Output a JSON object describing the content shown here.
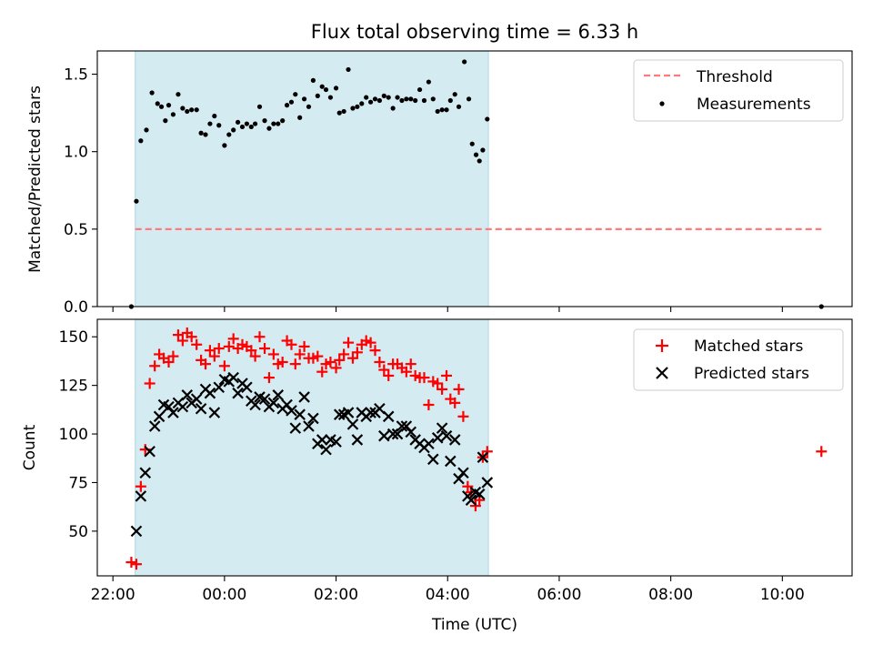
{
  "chart_data": [
    {
      "type": "scatter",
      "title": "Flux total observing time = 6.33 h",
      "xlabel": "",
      "ylabel": "Matched/Predicted stars",
      "x_unit": "hours since 22:00 UTC",
      "xlim": [
        -0.28,
        13.25
      ],
      "ylim": [
        0,
        1.65
      ],
      "yticks": [
        {
          "value": 0.0,
          "label": "0.0"
        },
        {
          "value": 0.5,
          "label": "0.5"
        },
        {
          "value": 1.0,
          "label": "1.0"
        },
        {
          "value": 1.5,
          "label": "1.5"
        }
      ],
      "observing_window": [
        0.4,
        6.73
      ],
      "threshold": {
        "name": "Threshold",
        "value": 0.5,
        "x": [
          0.4,
          12.7
        ]
      },
      "legend": {
        "position": "top-right",
        "entries": [
          "Threshold",
          "Measurements"
        ]
      },
      "series": [
        {
          "name": "Measurements",
          "points": [
            [
              0.33,
              0.0
            ],
            [
              0.42,
              0.68
            ],
            [
              0.5,
              1.07
            ],
            [
              0.6,
              1.14
            ],
            [
              0.7,
              1.38
            ],
            [
              0.8,
              1.31
            ],
            [
              0.87,
              1.29
            ],
            [
              0.94,
              1.2
            ],
            [
              1.0,
              1.3
            ],
            [
              1.08,
              1.24
            ],
            [
              1.17,
              1.37
            ],
            [
              1.25,
              1.28
            ],
            [
              1.33,
              1.26
            ],
            [
              1.41,
              1.27
            ],
            [
              1.5,
              1.27
            ],
            [
              1.58,
              1.12
            ],
            [
              1.66,
              1.11
            ],
            [
              1.74,
              1.18
            ],
            [
              1.82,
              1.23
            ],
            [
              1.9,
              1.17
            ],
            [
              2.0,
              1.04
            ],
            [
              2.08,
              1.11
            ],
            [
              2.16,
              1.14
            ],
            [
              2.24,
              1.19
            ],
            [
              2.32,
              1.16
            ],
            [
              2.4,
              1.18
            ],
            [
              2.48,
              1.16
            ],
            [
              2.55,
              1.18
            ],
            [
              2.63,
              1.29
            ],
            [
              2.72,
              1.2
            ],
            [
              2.8,
              1.15
            ],
            [
              2.88,
              1.18
            ],
            [
              2.96,
              1.18
            ],
            [
              3.04,
              1.2
            ],
            [
              3.12,
              1.3
            ],
            [
              3.2,
              1.32
            ],
            [
              3.27,
              1.37
            ],
            [
              3.35,
              1.22
            ],
            [
              3.43,
              1.34
            ],
            [
              3.51,
              1.29
            ],
            [
              3.59,
              1.46
            ],
            [
              3.67,
              1.36
            ],
            [
              3.75,
              1.42
            ],
            [
              3.82,
              1.4
            ],
            [
              3.9,
              1.35
            ],
            [
              4.0,
              1.41
            ],
            [
              4.06,
              1.25
            ],
            [
              4.14,
              1.26
            ],
            [
              4.22,
              1.53
            ],
            [
              4.3,
              1.28
            ],
            [
              4.38,
              1.29
            ],
            [
              4.46,
              1.31
            ],
            [
              4.54,
              1.35
            ],
            [
              4.62,
              1.32
            ],
            [
              4.7,
              1.34
            ],
            [
              4.78,
              1.33
            ],
            [
              4.86,
              1.36
            ],
            [
              4.94,
              1.35
            ],
            [
              5.02,
              1.28
            ],
            [
              5.1,
              1.35
            ],
            [
              5.18,
              1.33
            ],
            [
              5.26,
              1.34
            ],
            [
              5.34,
              1.34
            ],
            [
              5.42,
              1.33
            ],
            [
              5.5,
              1.4
            ],
            [
              5.58,
              1.33
            ],
            [
              5.66,
              1.45
            ],
            [
              5.74,
              1.34
            ],
            [
              5.82,
              1.26
            ],
            [
              5.9,
              1.27
            ],
            [
              5.98,
              1.27
            ],
            [
              6.05,
              1.33
            ],
            [
              6.13,
              1.37
            ],
            [
              6.2,
              1.29
            ],
            [
              6.3,
              1.58
            ],
            [
              6.38,
              1.34
            ],
            [
              6.44,
              1.05
            ],
            [
              6.51,
              0.98
            ],
            [
              6.57,
              0.94
            ],
            [
              6.63,
              1.01
            ],
            [
              6.71,
              1.21
            ],
            [
              12.7,
              0.0
            ]
          ]
        }
      ]
    },
    {
      "type": "scatter",
      "title": "",
      "xlabel": "Time (UTC)",
      "ylabel": "Count",
      "x_unit": "hours since 22:00 UTC",
      "xlim": [
        -0.28,
        13.25
      ],
      "ylim": [
        27,
        159
      ],
      "xticks": [
        {
          "value": 0,
          "label": "22:00"
        },
        {
          "value": 2,
          "label": "00:00"
        },
        {
          "value": 4,
          "label": "02:00"
        },
        {
          "value": 6,
          "label": "04:00"
        },
        {
          "value": 8,
          "label": "06:00"
        },
        {
          "value": 10,
          "label": "08:00"
        },
        {
          "value": 12,
          "label": "10:00"
        }
      ],
      "yticks": [
        {
          "value": 50,
          "label": "50"
        },
        {
          "value": 75,
          "label": "75"
        },
        {
          "value": 100,
          "label": "100"
        },
        {
          "value": 125,
          "label": "125"
        },
        {
          "value": 150,
          "label": "150"
        }
      ],
      "observing_window": [
        0.4,
        6.73
      ],
      "legend": {
        "position": "top-right",
        "entries": [
          "Matched stars",
          "Predicted stars"
        ]
      },
      "series": [
        {
          "name": "Matched stars",
          "color": "#ff0000",
          "marker": "plus",
          "points": [
            [
              0.33,
              34
            ],
            [
              0.42,
              33
            ],
            [
              0.5,
              73
            ],
            [
              0.58,
              92
            ],
            [
              0.66,
              126
            ],
            [
              0.75,
              135
            ],
            [
              0.83,
              141
            ],
            [
              0.91,
              139
            ],
            [
              1.0,
              137
            ],
            [
              1.08,
              140
            ],
            [
              1.17,
              151
            ],
            [
              1.25,
              148
            ],
            [
              1.33,
              152
            ],
            [
              1.41,
              150
            ],
            [
              1.5,
              146
            ],
            [
              1.58,
              138
            ],
            [
              1.66,
              136
            ],
            [
              1.74,
              143
            ],
            [
              1.82,
              140
            ],
            [
              1.9,
              144
            ],
            [
              2.0,
              135
            ],
            [
              2.08,
              145
            ],
            [
              2.16,
              149
            ],
            [
              2.24,
              144
            ],
            [
              2.32,
              146
            ],
            [
              2.4,
              145
            ],
            [
              2.48,
              143
            ],
            [
              2.55,
              140
            ],
            [
              2.63,
              150
            ],
            [
              2.72,
              144
            ],
            [
              2.8,
              129
            ],
            [
              2.88,
              141
            ],
            [
              2.96,
              136
            ],
            [
              3.04,
              137
            ],
            [
              3.12,
              148
            ],
            [
              3.2,
              146
            ],
            [
              3.27,
              136
            ],
            [
              3.35,
              141
            ],
            [
              3.43,
              145
            ],
            [
              3.51,
              139
            ],
            [
              3.59,
              139
            ],
            [
              3.67,
              140
            ],
            [
              3.75,
              132
            ],
            [
              3.82,
              136
            ],
            [
              3.9,
              137
            ],
            [
              4.0,
              134
            ],
            [
              4.06,
              138
            ],
            [
              4.14,
              141
            ],
            [
              4.22,
              147
            ],
            [
              4.3,
              139
            ],
            [
              4.38,
              142
            ],
            [
              4.46,
              146
            ],
            [
              4.54,
              148
            ],
            [
              4.62,
              147
            ],
            [
              4.7,
              143
            ],
            [
              4.78,
              137
            ],
            [
              4.86,
              133
            ],
            [
              4.94,
              130
            ],
            [
              5.02,
              136
            ],
            [
              5.1,
              136
            ],
            [
              5.18,
              134
            ],
            [
              5.26,
              132
            ],
            [
              5.34,
              136
            ],
            [
              5.42,
              130
            ],
            [
              5.5,
              129
            ],
            [
              5.58,
              129
            ],
            [
              5.66,
              115
            ],
            [
              5.74,
              127
            ],
            [
              5.82,
              126
            ],
            [
              5.9,
              123
            ],
            [
              5.98,
              130
            ],
            [
              6.05,
              118
            ],
            [
              6.13,
              116
            ],
            [
              6.2,
              123
            ],
            [
              6.28,
              109
            ],
            [
              6.36,
              73
            ],
            [
              6.42,
              70
            ],
            [
              6.5,
              63
            ],
            [
              6.57,
              66
            ],
            [
              6.63,
              88
            ],
            [
              6.71,
              91
            ],
            [
              12.7,
              91
            ]
          ]
        },
        {
          "name": "Predicted stars",
          "color": "#000000",
          "marker": "x",
          "points": [
            [
              0.42,
              50
            ],
            [
              0.5,
              68
            ],
            [
              0.58,
              80
            ],
            [
              0.66,
              91
            ],
            [
              0.75,
              104
            ],
            [
              0.83,
              109
            ],
            [
              0.91,
              115
            ],
            [
              1.0,
              114
            ],
            [
              1.08,
              111
            ],
            [
              1.17,
              116
            ],
            [
              1.25,
              114
            ],
            [
              1.33,
              120
            ],
            [
              1.41,
              116
            ],
            [
              1.5,
              118
            ],
            [
              1.58,
              113
            ],
            [
              1.66,
              123
            ],
            [
              1.74,
              121
            ],
            [
              1.82,
              111
            ],
            [
              1.9,
              124
            ],
            [
              2.0,
              128
            ],
            [
              2.08,
              127
            ],
            [
              2.16,
              129
            ],
            [
              2.24,
              121
            ],
            [
              2.32,
              126
            ],
            [
              2.4,
              124
            ],
            [
              2.48,
              117
            ],
            [
              2.55,
              115
            ],
            [
              2.63,
              119
            ],
            [
              2.72,
              118
            ],
            [
              2.8,
              114
            ],
            [
              2.88,
              116
            ],
            [
              2.96,
              120
            ],
            [
              3.04,
              113
            ],
            [
              3.12,
              115
            ],
            [
              3.2,
              112
            ],
            [
              3.27,
              103
            ],
            [
              3.35,
              110
            ],
            [
              3.43,
              119
            ],
            [
              3.51,
              104
            ],
            [
              3.59,
              108
            ],
            [
              3.67,
              95
            ],
            [
              3.75,
              97
            ],
            [
              3.82,
              92
            ],
            [
              3.9,
              97
            ],
            [
              4.0,
              96
            ],
            [
              4.06,
              110
            ],
            [
              4.14,
              110
            ],
            [
              4.22,
              111
            ],
            [
              4.3,
              105
            ],
            [
              4.38,
              97
            ],
            [
              4.46,
              111
            ],
            [
              4.54,
              109
            ],
            [
              4.62,
              111
            ],
            [
              4.7,
              111
            ],
            [
              4.78,
              113
            ],
            [
              4.86,
              99
            ],
            [
              4.94,
              109
            ],
            [
              5.02,
              100
            ],
            [
              5.1,
              100
            ],
            [
              5.18,
              104
            ],
            [
              5.26,
              104
            ],
            [
              5.34,
              101
            ],
            [
              5.42,
              97
            ],
            [
              5.5,
              95
            ],
            [
              5.58,
              93
            ],
            [
              5.66,
              95
            ],
            [
              5.74,
              87
            ],
            [
              5.82,
              98
            ],
            [
              5.9,
              103
            ],
            [
              5.98,
              99
            ],
            [
              6.05,
              86
            ],
            [
              6.13,
              97
            ],
            [
              6.2,
              77
            ],
            [
              6.28,
              80
            ],
            [
              6.36,
              68
            ],
            [
              6.42,
              66
            ],
            [
              6.5,
              70
            ],
            [
              6.57,
              69
            ],
            [
              6.63,
              88
            ],
            [
              6.71,
              75
            ]
          ]
        }
      ]
    }
  ]
}
